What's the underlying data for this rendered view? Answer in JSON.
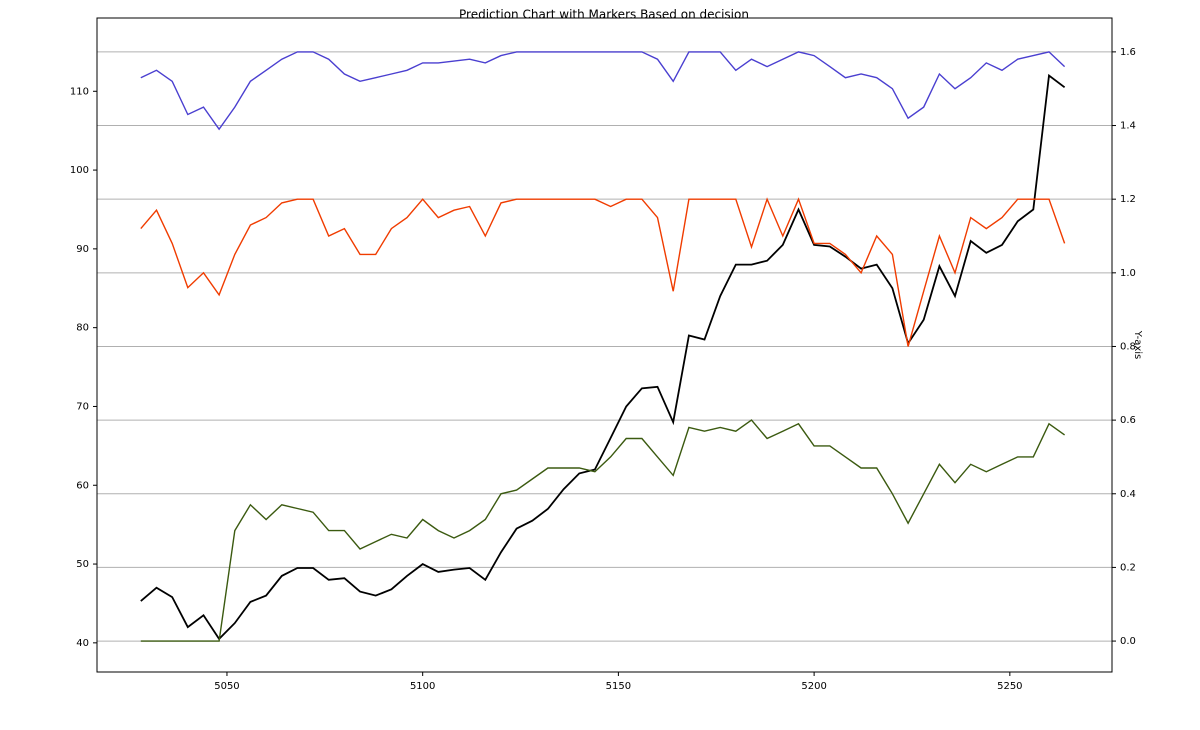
{
  "chart_data": {
    "type": "line",
    "title": "Prediction Chart with Markers Based on decision",
    "y2label": "Y-axis",
    "x": [
      5028,
      5032,
      5036,
      5040,
      5044,
      5048,
      5052,
      5056,
      5060,
      5064,
      5068,
      5072,
      5076,
      5080,
      5084,
      5088,
      5092,
      5096,
      5100,
      5104,
      5108,
      5112,
      5116,
      5120,
      5124,
      5128,
      5132,
      5136,
      5140,
      5144,
      5148,
      5152,
      5156,
      5160,
      5164,
      5168,
      5172,
      5176,
      5180,
      5184,
      5188,
      5192,
      5196,
      5200,
      5204,
      5208,
      5212,
      5216,
      5220,
      5224,
      5228,
      5232,
      5236,
      5240,
      5244,
      5248,
      5252,
      5256,
      5260,
      5264
    ],
    "series": [
      {
        "color": "#000000",
        "axis": "y",
        "values": [
          45.3,
          47,
          45.8,
          42,
          43.5,
          40.5,
          42.5,
          45.2,
          46,
          48.5,
          49.5,
          49.5,
          48,
          48.2,
          46.5,
          46,
          46.8,
          48.5,
          50,
          49,
          49.3,
          49.5,
          48,
          51.5,
          54.5,
          55.5,
          57,
          59.5,
          61.5,
          62,
          66,
          70,
          72.3,
          72.5,
          68,
          79,
          78.5,
          84,
          88,
          88,
          88.5,
          90.5,
          95,
          90.5,
          90.3,
          89,
          87.5,
          88,
          85,
          78,
          81,
          87.8,
          84,
          91,
          89.5,
          90.5,
          93.5,
          95,
          112,
          110.5
        ]
      },
      {
        "color": "#4a3fd0",
        "axis": "y2",
        "values": [
          1.53,
          1.55,
          1.52,
          1.43,
          1.45,
          1.39,
          1.45,
          1.52,
          1.55,
          1.58,
          1.6,
          1.6,
          1.58,
          1.54,
          1.52,
          1.53,
          1.54,
          1.55,
          1.57,
          1.57,
          1.575,
          1.58,
          1.57,
          1.59,
          1.6,
          1.6,
          1.6,
          1.6,
          1.6,
          1.6,
          1.6,
          1.6,
          1.6,
          1.58,
          1.52,
          1.6,
          1.6,
          1.6,
          1.55,
          1.58,
          1.56,
          1.58,
          1.6,
          1.59,
          1.56,
          1.53,
          1.54,
          1.53,
          1.5,
          1.42,
          1.45,
          1.54,
          1.5,
          1.53,
          1.57,
          1.55,
          1.58,
          1.59,
          1.6,
          1.56
        ]
      },
      {
        "color": "#f03c00",
        "axis": "y2",
        "values": [
          1.12,
          1.17,
          1.08,
          0.96,
          1.0,
          0.94,
          1.05,
          1.13,
          1.15,
          1.19,
          1.2,
          1.2,
          1.1,
          1.12,
          1.05,
          1.05,
          1.12,
          1.15,
          1.2,
          1.15,
          1.17,
          1.18,
          1.1,
          1.19,
          1.2,
          1.2,
          1.2,
          1.2,
          1.2,
          1.2,
          1.18,
          1.2,
          1.2,
          1.15,
          0.95,
          1.2,
          1.2,
          1.2,
          1.2,
          1.07,
          1.2,
          1.1,
          1.2,
          1.08,
          1.08,
          1.05,
          1.0,
          1.1,
          1.05,
          0.8,
          0.95,
          1.1,
          1.0,
          1.15,
          1.12,
          1.15,
          1.2,
          1.2,
          1.2,
          1.08
        ]
      },
      {
        "color": "#3b5a10",
        "axis": "y2",
        "values": [
          0,
          0,
          0,
          0,
          0,
          0,
          0.3,
          0.37,
          0.33,
          0.37,
          0.36,
          0.35,
          0.3,
          0.3,
          0.25,
          0.27,
          0.29,
          0.28,
          0.33,
          0.3,
          0.28,
          0.3,
          0.33,
          0.4,
          0.41,
          0.44,
          0.47,
          0.47,
          0.47,
          0.46,
          0.5,
          0.55,
          0.55,
          0.5,
          0.45,
          0.58,
          0.57,
          0.58,
          0.57,
          0.6,
          0.55,
          0.57,
          0.59,
          0.53,
          0.53,
          0.5,
          0.47,
          0.47,
          0.4,
          0.32,
          0.4,
          0.48,
          0.43,
          0.48,
          0.46,
          0.48,
          0.5,
          0.5,
          0.59,
          0.56
        ]
      }
    ],
    "xlim": [
      5016.8,
      5276.1
    ],
    "xticks": [
      5050,
      5100,
      5150,
      5200,
      5250
    ],
    "ylim": [
      36.3,
      119.3
    ],
    "yticks": [
      40,
      50,
      60,
      70,
      80,
      90,
      100,
      110
    ],
    "y2lim": [
      -0.084,
      1.692
    ],
    "y2ticks": [
      {
        "value": 0,
        "label": "0.0"
      },
      0.2,
      0.4,
      0.6,
      0.8,
      {
        "value": 1,
        "label": "1.0"
      },
      1.2,
      1.4,
      1.6
    ],
    "grid": true
  }
}
